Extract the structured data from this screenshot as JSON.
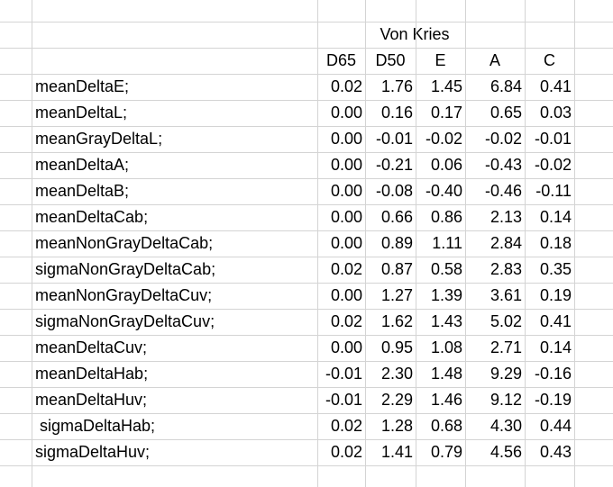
{
  "sheet": {
    "group_header": "Von Kries",
    "columns": [
      "D65",
      "D50",
      "E",
      "A",
      "C"
    ],
    "rows": [
      {
        "label": "meanDeltaE;",
        "values": [
          "0.02",
          "1.76",
          "1.45",
          "6.84",
          "0.41"
        ]
      },
      {
        "label": "meanDeltaL;",
        "values": [
          "0.00",
          "0.16",
          "0.17",
          "0.65",
          "0.03"
        ]
      },
      {
        "label": "meanGrayDeltaL;",
        "values": [
          "0.00",
          "-0.01",
          "-0.02",
          "-0.02",
          "-0.01"
        ]
      },
      {
        "label": "meanDeltaA;",
        "values": [
          "0.00",
          "-0.21",
          "0.06",
          "-0.43",
          "-0.02"
        ]
      },
      {
        "label": "meanDeltaB;",
        "values": [
          "0.00",
          "-0.08",
          "-0.40",
          "-0.46",
          "-0.11"
        ]
      },
      {
        "label": "meanDeltaCab;",
        "values": [
          "0.00",
          "0.66",
          "0.86",
          "2.13",
          "0.14"
        ]
      },
      {
        "label": "meanNonGrayDeltaCab;",
        "values": [
          "0.00",
          "0.89",
          "1.11",
          "2.84",
          "0.18"
        ]
      },
      {
        "label": "sigmaNonGrayDeltaCab;",
        "values": [
          "0.02",
          "0.87",
          "0.58",
          "2.83",
          "0.35"
        ]
      },
      {
        "label": "meanNonGrayDeltaCuv;",
        "values": [
          "0.00",
          "1.27",
          "1.39",
          "3.61",
          "0.19"
        ]
      },
      {
        "label": "sigmaNonGrayDeltaCuv;",
        "values": [
          "0.02",
          "1.62",
          "1.43",
          "5.02",
          "0.41"
        ]
      },
      {
        "label": "meanDeltaCuv;",
        "values": [
          "0.00",
          "0.95",
          "1.08",
          "2.71",
          "0.14"
        ]
      },
      {
        "label": "meanDeltaHab;",
        "values": [
          "-0.01",
          "2.30",
          "1.48",
          "9.29",
          "-0.16"
        ]
      },
      {
        "label": "meanDeltaHuv;",
        "values": [
          "-0.01",
          "2.29",
          "1.46",
          "9.12",
          "-0.19"
        ]
      },
      {
        "label": " sigmaDeltaHab;",
        "values": [
          "0.02",
          "1.28",
          "0.68",
          "4.30",
          "0.44"
        ]
      },
      {
        "label": "sigmaDeltaHuv;",
        "values": [
          "0.02",
          "1.41",
          "0.79",
          "4.56",
          "0.43"
        ]
      }
    ]
  }
}
